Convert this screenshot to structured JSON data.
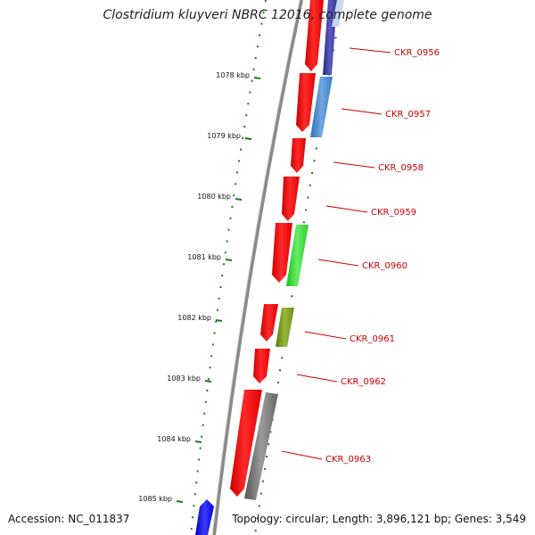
{
  "title": "Clostridium kluyveri NBRC 12016, complete genome",
  "footer": {
    "accession": "Accession: NC_011837",
    "summary": "Topology: circular; Length: 3,896,121 bp; Genes: 3,549"
  },
  "colors": {
    "backbone": "#8a8a8a",
    "ruler": "#1a7a1a",
    "label": "#cc0000",
    "forward_cds": "#ff0000",
    "rna": "#4a8bd0",
    "green_gene": "#33dd33",
    "olive_gene": "#7a9a1a",
    "gray_gene": "#707070",
    "dark_blue_gene": "#3a3aa0",
    "blue_gene": "#0000ff"
  },
  "ruler_ticks": [
    {
      "label": "1078 kbp"
    },
    {
      "label": "1079 kbp"
    },
    {
      "label": "1080 kbp"
    },
    {
      "label": "1081 kbp"
    },
    {
      "label": "1082 kbp"
    },
    {
      "label": "1083 kbp"
    },
    {
      "label": "1084 kbp"
    },
    {
      "label": "1085 kbp"
    }
  ],
  "gene_labels": [
    {
      "name": "CKR_0956"
    },
    {
      "name": "CKR_0957"
    },
    {
      "name": "CKR_0958"
    },
    {
      "name": "CKR_0959"
    },
    {
      "name": "CKR_0960"
    },
    {
      "name": "CKR_0961"
    },
    {
      "name": "CKR_0962"
    },
    {
      "name": "CKR_0963"
    }
  ]
}
